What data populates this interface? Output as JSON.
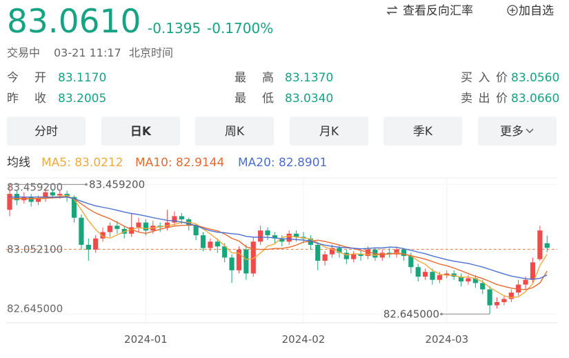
{
  "header": {
    "price": "83.0610",
    "change": "-0.1395",
    "change_pct": "-0.1700%",
    "status": "交易中",
    "time": "03-21 11:17",
    "timezone": "北京时间",
    "actions": [
      "查看反向汇率",
      "加自选"
    ]
  },
  "stats": [
    {
      "label": "今开",
      "value": "83.1170"
    },
    {
      "label": "昨收",
      "value": "83.2005"
    },
    {
      "label": "最高",
      "value": "83.1370"
    },
    {
      "label": "最低",
      "value": "83.0340"
    },
    {
      "label": "买入价",
      "value": "83.0560"
    },
    {
      "label": "卖出价",
      "value": "83.0660"
    }
  ],
  "tabs": [
    "分时",
    "日K",
    "周K",
    "月K",
    "季K",
    "更多"
  ],
  "active_tab": 1,
  "chart_data": {
    "type": "candlestick",
    "ma_title": "均线",
    "categories": [
      null,
      null,
      null,
      null,
      null,
      null,
      null,
      null,
      null,
      null,
      null,
      null,
      null,
      null,
      null,
      null,
      null,
      null,
      null,
      "2024-01",
      null,
      null,
      null,
      null,
      null,
      null,
      null,
      null,
      null,
      null,
      null,
      null,
      null,
      null,
      null,
      null,
      null,
      null,
      null,
      null,
      null,
      "2024-02",
      null,
      null,
      null,
      null,
      null,
      null,
      null,
      null,
      null,
      null,
      null,
      null,
      null,
      null,
      null,
      null,
      null,
      null,
      null,
      "2024-03",
      null,
      null,
      null,
      null,
      null,
      null,
      null,
      null,
      null,
      null,
      null,
      null,
      null,
      null
    ],
    "open": [
      83.3,
      83.4,
      83.36,
      83.38,
      83.35,
      83.37,
      83.41,
      83.39,
      83.4,
      83.38,
      83.25,
      83.08,
      83.05,
      83.12,
      83.16,
      83.2,
      83.18,
      83.15,
      83.19,
      83.22,
      83.17,
      83.2,
      83.19,
      83.22,
      83.26,
      83.24,
      83.2,
      83.14,
      83.06,
      83.1,
      83.07,
      83.0,
      82.92,
      83.05,
      82.9,
      83.1,
      83.17,
      83.14,
      83.12,
      83.1,
      83.15,
      83.13,
      83.12,
      83.08,
      82.98,
      83.02,
      83.06,
      83.03,
      82.99,
      83.02,
      83.01,
      83.05,
      83.0,
      83.03,
      83.02,
      83.05,
      83.01,
      82.94,
      82.88,
      82.91,
      82.86,
      82.89,
      82.9,
      82.88,
      82.85,
      82.87,
      82.84,
      82.8,
      82.7,
      82.72,
      82.74,
      82.78,
      82.83,
      82.86,
      82.99,
      83.09
    ],
    "high": [
      83.4592,
      83.42,
      83.41,
      83.4,
      83.39,
      83.43,
      83.43,
      83.42,
      83.42,
      83.39,
      83.27,
      83.12,
      83.14,
      83.19,
      83.22,
      83.23,
      83.2,
      83.28,
      83.25,
      83.24,
      83.23,
      83.22,
      83.3,
      83.29,
      83.28,
      83.25,
      83.21,
      83.16,
      83.12,
      83.12,
      83.09,
      83.02,
      83.07,
      83.08,
      83.13,
      83.2,
      83.19,
      83.16,
      83.14,
      83.17,
      83.17,
      83.16,
      83.14,
      83.1,
      83.04,
      83.08,
      83.08,
      83.05,
      83.04,
      83.04,
      83.07,
      83.06,
      83.05,
      83.06,
      83.07,
      83.06,
      83.03,
      82.96,
      82.93,
      82.93,
      82.91,
      82.92,
      82.92,
      82.9,
      82.89,
      82.89,
      82.86,
      82.82,
      82.75,
      82.76,
      82.8,
      82.86,
      82.88,
      83.0,
      83.2,
      83.137
    ],
    "low": [
      83.26,
      83.33,
      83.34,
      83.32,
      83.33,
      83.35,
      83.37,
      83.37,
      83.35,
      83.22,
      83.05,
      82.98,
      83.03,
      83.1,
      83.13,
      83.15,
      83.12,
      83.13,
      83.16,
      83.14,
      83.15,
      83.16,
      83.17,
      83.2,
      83.21,
      83.17,
      83.11,
      83.04,
      83.04,
      83.03,
      82.97,
      82.84,
      82.9,
      82.86,
      82.88,
      83.08,
      83.11,
      83.09,
      83.07,
      83.08,
      83.1,
      83.09,
      83.05,
      82.92,
      82.95,
      83.0,
      83.0,
      82.96,
      82.97,
      82.98,
      82.99,
      82.98,
      82.98,
      83.0,
      83.0,
      82.98,
      82.9,
      82.85,
      82.86,
      82.83,
      82.84,
      82.87,
      82.86,
      82.82,
      82.83,
      82.81,
      82.77,
      82.645,
      82.68,
      82.7,
      82.72,
      82.76,
      82.8,
      82.84,
      82.98,
      83.034
    ],
    "close": [
      83.4,
      83.36,
      83.38,
      83.35,
      83.37,
      83.41,
      83.39,
      83.4,
      83.38,
      83.25,
      83.08,
      83.05,
      83.12,
      83.16,
      83.2,
      83.18,
      83.15,
      83.19,
      83.22,
      83.17,
      83.2,
      83.19,
      83.22,
      83.26,
      83.24,
      83.2,
      83.14,
      83.06,
      83.1,
      83.07,
      83.0,
      82.92,
      83.05,
      82.9,
      83.1,
      83.17,
      83.14,
      83.12,
      83.1,
      83.15,
      83.13,
      83.12,
      83.08,
      82.98,
      83.02,
      83.06,
      83.03,
      82.99,
      83.02,
      83.01,
      83.05,
      83.0,
      83.03,
      83.02,
      83.05,
      83.01,
      82.94,
      82.88,
      82.91,
      82.86,
      82.89,
      82.9,
      82.88,
      82.85,
      82.87,
      82.84,
      82.8,
      82.7,
      82.72,
      82.74,
      82.78,
      82.83,
      82.86,
      82.97,
      83.17,
      83.061
    ],
    "up_color": "#f04a4a",
    "down_color": "#17a57c",
    "series": [
      {
        "name": "MA5: 83.0212",
        "color": "#f2a93b",
        "values": [
          83.37,
          83.37,
          83.37,
          83.37,
          83.372,
          83.374,
          83.38,
          83.384,
          83.39,
          83.366,
          83.3,
          83.232,
          83.176,
          83.132,
          83.122,
          83.142,
          83.162,
          83.176,
          83.188,
          83.182,
          83.186,
          83.194,
          83.2,
          83.208,
          83.222,
          83.222,
          83.212,
          83.18,
          83.148,
          83.114,
          83.074,
          83.03,
          83.028,
          82.988,
          82.994,
          83.028,
          83.072,
          83.086,
          83.126,
          83.136,
          83.128,
          83.124,
          83.116,
          83.092,
          83.066,
          83.052,
          83.034,
          83.016,
          83.024,
          83.022,
          83.02,
          83.014,
          83.022,
          83.022,
          83.03,
          83.022,
          83.01,
          82.98,
          82.958,
          82.92,
          82.896,
          82.888,
          82.888,
          82.876,
          82.878,
          82.868,
          82.848,
          82.812,
          82.786,
          82.76,
          82.748,
          82.754,
          82.786,
          82.836,
          82.95,
          83.0212
        ]
      },
      {
        "name": "MA10: 82.9144",
        "color": "#e8692e",
        "values": [
          83.37,
          83.37,
          83.37,
          83.37,
          83.37,
          83.372,
          83.375,
          83.377,
          83.38,
          83.369,
          83.337,
          83.306,
          83.28,
          83.261,
          83.244,
          83.221,
          83.197,
          83.176,
          83.16,
          83.152,
          83.164,
          83.178,
          83.188,
          83.198,
          83.202,
          83.204,
          83.203,
          83.19,
          83.178,
          83.168,
          83.148,
          83.121,
          83.104,
          83.068,
          83.054,
          83.051,
          83.051,
          83.057,
          83.057,
          83.065,
          83.078,
          83.098,
          83.101,
          83.109,
          83.101,
          83.09,
          83.079,
          83.066,
          83.058,
          83.044,
          83.036,
          83.024,
          83.019,
          83.023,
          83.026,
          83.021,
          83.012,
          83.001,
          82.99,
          82.975,
          82.959,
          82.949,
          82.934,
          82.917,
          82.899,
          82.882,
          82.868,
          82.85,
          82.831,
          82.819,
          82.808,
          82.801,
          82.799,
          82.811,
          82.841,
          82.9144
        ]
      },
      {
        "name": "MA20: 82.8901",
        "color": "#4a6fd0",
        "values": [
          83.38,
          83.38,
          83.38,
          83.38,
          83.38,
          83.38,
          83.38,
          83.38,
          83.38,
          83.37,
          83.354,
          83.338,
          83.325,
          83.316,
          83.307,
          83.297,
          83.286,
          83.277,
          83.27,
          83.261,
          83.251,
          83.242,
          83.234,
          83.23,
          83.223,
          83.213,
          83.2,
          83.183,
          83.169,
          83.16,
          83.156,
          83.15,
          83.146,
          83.133,
          83.128,
          83.128,
          83.127,
          83.124,
          83.118,
          83.117,
          83.113,
          83.11,
          83.103,
          83.089,
          83.078,
          83.071,
          83.065,
          83.062,
          83.058,
          83.055,
          83.057,
          83.061,
          83.06,
          83.066,
          83.064,
          83.056,
          83.046,
          83.034,
          83.024,
          83.01,
          82.998,
          82.987,
          82.977,
          82.97,
          82.963,
          82.952,
          82.94,
          82.926,
          82.911,
          82.897,
          82.884,
          82.875,
          82.867,
          82.864,
          82.87,
          82.8901
        ]
      }
    ],
    "ylim": [
      82.59,
      83.5
    ],
    "yticks": [
      {
        "value": 82.645,
        "label": "82.645000"
      },
      {
        "value": 83.0521,
        "label": "83.052100"
      },
      {
        "value": 83.4592,
        "label": "83.459200"
      }
    ],
    "max_label": "83.459200",
    "min_label": "82.645000"
  }
}
